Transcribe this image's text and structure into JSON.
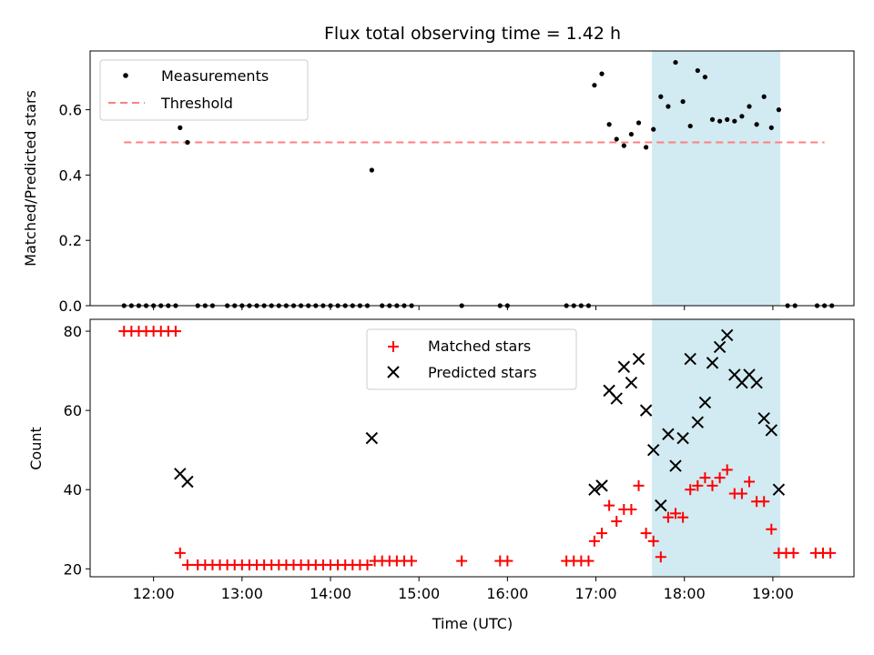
{
  "colors": {
    "measurement": "#000000",
    "threshold": "#ff7f7f",
    "matched": "#ff0000",
    "predicted": "#000000",
    "window": "#add8e6"
  },
  "chart_data": [
    {
      "type": "scatter",
      "title": "Flux total observing time = 1.42 h",
      "xlabel": "",
      "ylabel": "Matched/Predicted stars",
      "xlim": [
        "11:17",
        "19:55"
      ],
      "ylim": [
        0,
        0.78
      ],
      "yticks": [
        "0.0",
        "0.2",
        "0.4",
        "0.6"
      ],
      "legend_position": "top-left",
      "grid": false,
      "shaded_window": [
        "17:38",
        "19:05"
      ],
      "series": [
        {
          "name": "Measurements",
          "marker": "dot",
          "points": [
            [
              "11:40",
              0
            ],
            [
              "11:45",
              0
            ],
            [
              "11:50",
              0
            ],
            [
              "11:55",
              0
            ],
            [
              "12:00",
              0
            ],
            [
              "12:05",
              0
            ],
            [
              "12:10",
              0
            ],
            [
              "12:15",
              0
            ],
            [
              "12:18",
              0.545
            ],
            [
              "12:23",
              0.5
            ],
            [
              "12:30",
              0
            ],
            [
              "12:35",
              0
            ],
            [
              "12:40",
              0
            ],
            [
              "12:50",
              0
            ],
            [
              "12:55",
              0
            ],
            [
              "13:00",
              0
            ],
            [
              "13:05",
              0
            ],
            [
              "13:10",
              0
            ],
            [
              "13:15",
              0
            ],
            [
              "13:20",
              0
            ],
            [
              "13:25",
              0
            ],
            [
              "13:30",
              0
            ],
            [
              "13:35",
              0
            ],
            [
              "13:40",
              0
            ],
            [
              "13:45",
              0
            ],
            [
              "13:50",
              0
            ],
            [
              "13:55",
              0
            ],
            [
              "14:00",
              0
            ],
            [
              "14:05",
              0
            ],
            [
              "14:10",
              0
            ],
            [
              "14:15",
              0
            ],
            [
              "14:20",
              0
            ],
            [
              "14:25",
              0
            ],
            [
              "14:28",
              0.415
            ],
            [
              "14:35",
              0
            ],
            [
              "14:40",
              0
            ],
            [
              "14:45",
              0
            ],
            [
              "14:50",
              0
            ],
            [
              "14:55",
              0
            ],
            [
              "15:29",
              0
            ],
            [
              "15:55",
              0
            ],
            [
              "16:00",
              0
            ],
            [
              "16:40",
              0
            ],
            [
              "16:45",
              0
            ],
            [
              "16:50",
              0
            ],
            [
              "16:55",
              0
            ],
            [
              "16:59",
              0.675
            ],
            [
              "17:04",
              0.71
            ],
            [
              "17:09",
              0.555
            ],
            [
              "17:14",
              0.51
            ],
            [
              "17:19",
              0.49
            ],
            [
              "17:24",
              0.525
            ],
            [
              "17:29",
              0.56
            ],
            [
              "17:34",
              0.485
            ],
            [
              "17:39",
              0.54
            ],
            [
              "17:44",
              0.64
            ],
            [
              "17:49",
              0.61
            ],
            [
              "17:54",
              0.745
            ],
            [
              "17:59",
              0.625
            ],
            [
              "18:04",
              0.55
            ],
            [
              "18:09",
              0.72
            ],
            [
              "18:14",
              0.7
            ],
            [
              "18:19",
              0.57
            ],
            [
              "18:24",
              0.565
            ],
            [
              "18:29",
              0.57
            ],
            [
              "18:34",
              0.565
            ],
            [
              "18:39",
              0.58
            ],
            [
              "18:44",
              0.61
            ],
            [
              "18:49",
              0.555
            ],
            [
              "18:54",
              0.64
            ],
            [
              "18:59",
              0.545
            ],
            [
              "19:04",
              0.6
            ],
            [
              "19:10",
              0
            ],
            [
              "19:15",
              0
            ],
            [
              "19:30",
              0
            ],
            [
              "19:35",
              0
            ],
            [
              "19:40",
              0
            ]
          ]
        },
        {
          "name": "Threshold",
          "marker": "dashed-line",
          "x": [
            "11:40",
            "19:35"
          ],
          "y": 0.5
        }
      ]
    },
    {
      "type": "scatter",
      "title": "",
      "xlabel": "Time (UTC)",
      "ylabel": "Count",
      "xlim": [
        "11:17",
        "19:55"
      ],
      "ylim": [
        18,
        83
      ],
      "yticks": [
        "20",
        "40",
        "60",
        "80"
      ],
      "xticks": [
        "12:00",
        "13:00",
        "14:00",
        "15:00",
        "16:00",
        "17:00",
        "18:00",
        "19:00"
      ],
      "legend_position": "top-center",
      "grid": false,
      "shaded_window": [
        "17:38",
        "19:05"
      ],
      "series": [
        {
          "name": "Matched stars",
          "marker": "plus",
          "points": [
            [
              "11:40",
              80
            ],
            [
              "11:45",
              80
            ],
            [
              "11:50",
              80
            ],
            [
              "11:55",
              80
            ],
            [
              "12:00",
              80
            ],
            [
              "12:05",
              80
            ],
            [
              "12:10",
              80
            ],
            [
              "12:15",
              80
            ],
            [
              "12:18",
              24
            ],
            [
              "12:23",
              21
            ],
            [
              "12:30",
              21
            ],
            [
              "12:35",
              21
            ],
            [
              "12:40",
              21
            ],
            [
              "12:45",
              21
            ],
            [
              "12:50",
              21
            ],
            [
              "12:55",
              21
            ],
            [
              "13:00",
              21
            ],
            [
              "13:05",
              21
            ],
            [
              "13:10",
              21
            ],
            [
              "13:15",
              21
            ],
            [
              "13:20",
              21
            ],
            [
              "13:25",
              21
            ],
            [
              "13:30",
              21
            ],
            [
              "13:35",
              21
            ],
            [
              "13:40",
              21
            ],
            [
              "13:45",
              21
            ],
            [
              "13:50",
              21
            ],
            [
              "13:55",
              21
            ],
            [
              "14:00",
              21
            ],
            [
              "14:05",
              21
            ],
            [
              "14:10",
              21
            ],
            [
              "14:15",
              21
            ],
            [
              "14:20",
              21
            ],
            [
              "14:25",
              21
            ],
            [
              "14:30",
              22
            ],
            [
              "14:35",
              22
            ],
            [
              "14:40",
              22
            ],
            [
              "14:45",
              22
            ],
            [
              "14:50",
              22
            ],
            [
              "14:55",
              22
            ],
            [
              "15:29",
              22
            ],
            [
              "15:55",
              22
            ],
            [
              "16:00",
              22
            ],
            [
              "16:40",
              22
            ],
            [
              "16:45",
              22
            ],
            [
              "16:50",
              22
            ],
            [
              "16:55",
              22
            ],
            [
              "16:59",
              27
            ],
            [
              "17:04",
              29
            ],
            [
              "17:09",
              36
            ],
            [
              "17:14",
              32
            ],
            [
              "17:19",
              35
            ],
            [
              "17:24",
              35
            ],
            [
              "17:29",
              41
            ],
            [
              "17:34",
              29
            ],
            [
              "17:39",
              27
            ],
            [
              "17:44",
              23
            ],
            [
              "17:49",
              33
            ],
            [
              "17:54",
              34
            ],
            [
              "17:59",
              33
            ],
            [
              "18:04",
              40
            ],
            [
              "18:09",
              41
            ],
            [
              "18:14",
              43
            ],
            [
              "18:19",
              41
            ],
            [
              "18:24",
              43
            ],
            [
              "18:29",
              45
            ],
            [
              "18:34",
              39
            ],
            [
              "18:39",
              39
            ],
            [
              "18:44",
              42
            ],
            [
              "18:49",
              37
            ],
            [
              "18:54",
              37
            ],
            [
              "18:59",
              30
            ],
            [
              "19:04",
              24
            ],
            [
              "19:09",
              24
            ],
            [
              "19:14",
              24
            ],
            [
              "19:29",
              24
            ],
            [
              "19:34",
              24
            ],
            [
              "19:39",
              24
            ]
          ]
        },
        {
          "name": "Predicted stars",
          "marker": "x",
          "points": [
            [
              "12:18",
              44
            ],
            [
              "12:23",
              42
            ],
            [
              "14:28",
              53
            ],
            [
              "16:59",
              40
            ],
            [
              "17:04",
              41
            ],
            [
              "17:09",
              65
            ],
            [
              "17:14",
              63
            ],
            [
              "17:19",
              71
            ],
            [
              "17:24",
              67
            ],
            [
              "17:29",
              73
            ],
            [
              "17:34",
              60
            ],
            [
              "17:39",
              50
            ],
            [
              "17:44",
              36
            ],
            [
              "17:49",
              54
            ],
            [
              "17:54",
              46
            ],
            [
              "17:59",
              53
            ],
            [
              "18:04",
              73
            ],
            [
              "18:09",
              57
            ],
            [
              "18:14",
              62
            ],
            [
              "18:19",
              72
            ],
            [
              "18:24",
              76
            ],
            [
              "18:29",
              79
            ],
            [
              "18:34",
              69
            ],
            [
              "18:39",
              67
            ],
            [
              "18:44",
              69
            ],
            [
              "18:49",
              67
            ],
            [
              "18:54",
              58
            ],
            [
              "18:59",
              55
            ],
            [
              "19:04",
              40
            ]
          ]
        }
      ]
    }
  ]
}
